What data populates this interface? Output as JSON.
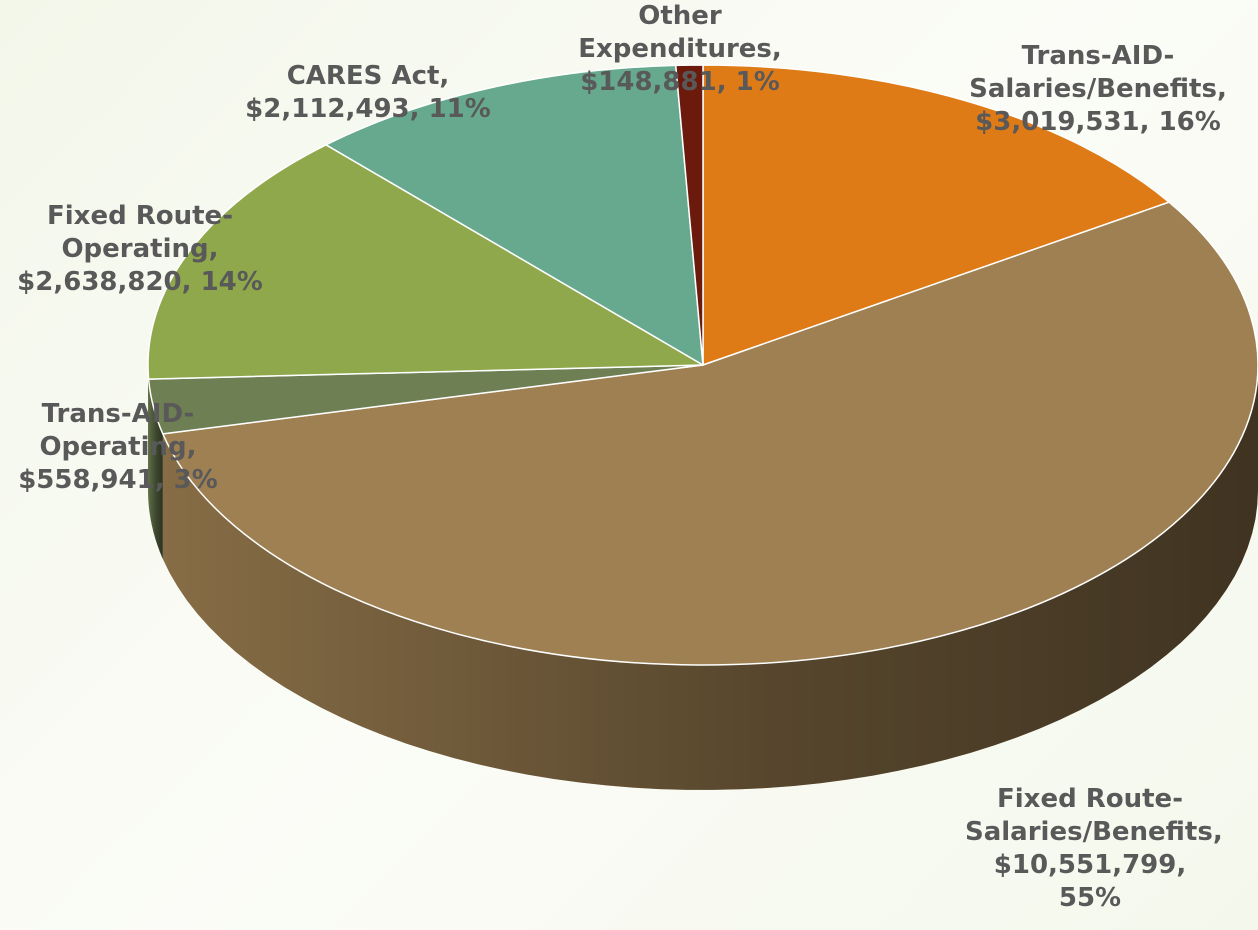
{
  "chart_data": {
    "type": "pie3d",
    "categories": [
      "Trans-AID-Salaries/Benefits",
      "Fixed Route-Salaries/Benefits",
      "Trans-AID-Operating",
      "Fixed Route-Operating",
      "CARES Act",
      "Other Expenditures"
    ],
    "values": [
      3019531,
      10551799,
      558941,
      2638820,
      2112493,
      148881
    ],
    "value_labels": [
      "$3,019,531",
      "$10,551,799",
      "$558,941",
      "$2,638,820",
      "$2,112,493",
      "$148,881"
    ],
    "percents": [
      16,
      55,
      3,
      14,
      11,
      1
    ],
    "percent_labels": [
      "16%",
      "55%",
      "3%",
      "14%",
      "11%",
      "1%"
    ],
    "colors": [
      "#df7b17",
      "#9e8052",
      "#6e7f54",
      "#8fa84c",
      "#66a98f",
      "#6b1a0c"
    ]
  }
}
